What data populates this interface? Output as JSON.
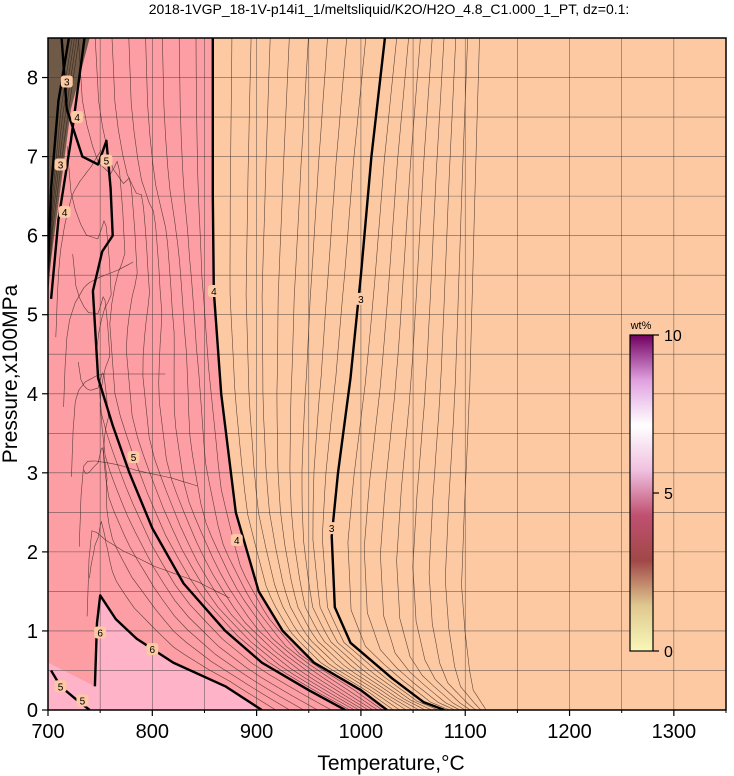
{
  "chart_data": {
    "type": "heatmap",
    "title": "2018-1VGP_18-1V-p14i1_1/meltsliquid/K2O/H2O_4.8_C1.000_1_PT, dz=0.1:",
    "xlabel": "Temperature,°C",
    "ylabel": "Pressure,x100MPa",
    "xlim": [
      700,
      1350
    ],
    "ylim": [
      0,
      8.5
    ],
    "x_ticks": [
      "700",
      "800",
      "900",
      "1000",
      "1100",
      "1200",
      "1300"
    ],
    "y_ticks": [
      "0",
      "1",
      "2",
      "3",
      "4",
      "5",
      "6",
      "7",
      "8"
    ],
    "grid": true,
    "colorbar": {
      "unit": "wt%",
      "range": [
        0,
        10
      ],
      "ticks": [
        "0",
        "5",
        "10"
      ],
      "colors": [
        "#f8f8b8",
        "#e0c890",
        "#a04848",
        "#c05070",
        "#f0c0e0",
        "#ffffff",
        "#e0a0e0",
        "#700060"
      ]
    },
    "background_color": "#fdc9a3",
    "region_color": "#fc9ea4",
    "high_color": "#ffb3c8",
    "contours": [
      {
        "level": "3",
        "label": "3",
        "points": [
          [
            1023,
            8.5
          ],
          [
            1010,
            7
          ],
          [
            1000,
            5.5
          ],
          [
            990,
            4.2
          ],
          [
            978,
            3
          ],
          [
            972,
            2.2
          ],
          [
            975,
            1.3
          ],
          [
            990,
            0.85
          ],
          [
            1030,
            0.4
          ],
          [
            1060,
            0.1
          ],
          [
            1080,
            0
          ]
        ],
        "label_at": [
          [
            1000,
            5.2
          ],
          [
            972,
            2.3
          ]
        ]
      },
      {
        "level": "4",
        "label": "4",
        "points": [
          [
            858,
            8.5
          ],
          [
            858,
            6.5
          ],
          [
            859,
            5.3
          ],
          [
            866,
            4
          ],
          [
            880,
            2.5
          ],
          [
            902,
            1.5
          ],
          [
            925,
            1
          ],
          [
            955,
            0.6
          ],
          [
            1000,
            0.25
          ],
          [
            1025,
            0
          ]
        ],
        "label_at": [
          [
            859,
            5.3
          ],
          [
            881,
            2.15
          ]
        ]
      },
      {
        "level": "5",
        "label": "5",
        "points": [
          [
            713,
            8.5
          ],
          [
            718,
            7.6
          ],
          [
            733,
            7.0
          ],
          [
            748,
            6.9
          ],
          [
            756,
            7.2
          ],
          [
            760,
            6.6
          ],
          [
            762,
            6.0
          ],
          [
            752,
            5.8
          ],
          [
            743,
            5.3
          ],
          [
            748,
            4.2
          ],
          [
            762,
            3.6
          ],
          [
            778,
            3.0
          ],
          [
            800,
            2.3
          ],
          [
            830,
            1.6
          ],
          [
            870,
            1.0
          ],
          [
            905,
            0.6
          ],
          [
            950,
            0.25
          ],
          [
            985,
            0
          ]
        ],
        "label_at": [
          [
            756,
            6.95
          ],
          [
            782,
            3.2
          ]
        ]
      },
      {
        "level": "6",
        "label": "6",
        "points": [
          [
            745,
            0.3
          ],
          [
            747,
            1.1
          ],
          [
            750,
            1.45
          ],
          [
            755,
            1.35
          ],
          [
            765,
            1.15
          ],
          [
            785,
            0.9
          ],
          [
            820,
            0.6
          ],
          [
            870,
            0.3
          ],
          [
            905,
            0
          ]
        ],
        "label_at": [
          [
            750,
            0.98
          ],
          [
            800,
            0.77
          ]
        ]
      },
      {
        "level": "4",
        "label": "4",
        "points": [
          [
            703,
            5.2
          ],
          [
            710,
            6.2
          ],
          [
            722,
            7.2
          ],
          [
            735,
            8.5
          ]
        ],
        "label_at": [
          [
            716,
            6.3
          ],
          [
            728,
            7.5
          ]
        ]
      },
      {
        "level": "3",
        "label": "3",
        "points": [
          [
            700,
            5.6
          ],
          [
            703,
            6.6
          ],
          [
            710,
            7.7
          ],
          [
            720,
            8.5
          ]
        ],
        "label_at": [
          [
            712,
            6.9
          ],
          [
            718,
            7.95
          ]
        ]
      },
      {
        "level": "5",
        "label": "5",
        "points": [
          [
            703,
            0.5
          ],
          [
            712,
            0.3
          ],
          [
            730,
            0.1
          ],
          [
            740,
            0
          ]
        ],
        "label_at": [
          [
            712,
            0.3
          ],
          [
            733,
            0.12
          ]
        ]
      }
    ]
  }
}
